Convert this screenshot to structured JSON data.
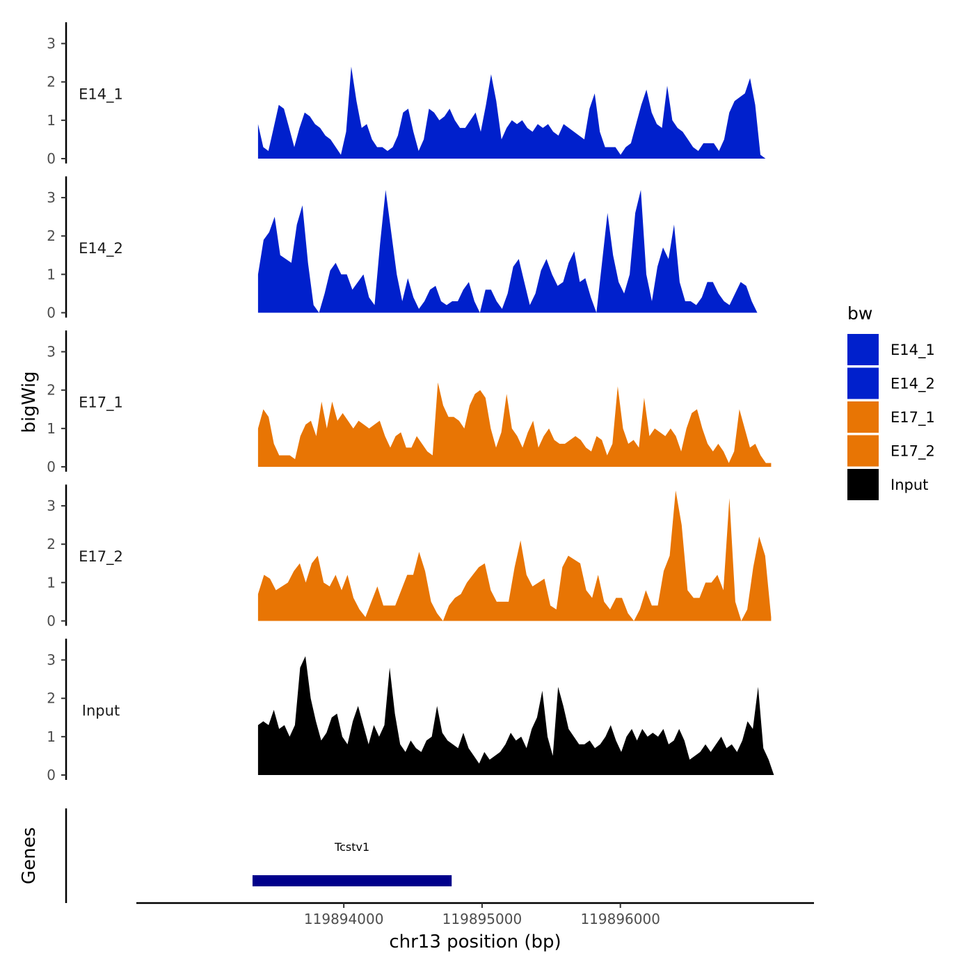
{
  "chart_data": {
    "type": "area",
    "ylabel": "bigWig",
    "xlabel": "chr13 position (bp)",
    "x_ticks": [
      119894000,
      119895000,
      119896000
    ],
    "x_tick_labels": [
      "119894000",
      "119895000",
      "119896000"
    ],
    "xlim": [
      119892500,
      119897400
    ],
    "ylim": [
      0,
      3.5
    ],
    "y_ticks": [
      0,
      1,
      2,
      3
    ],
    "y_tick_labels": [
      "0",
      "1",
      "2",
      "3"
    ],
    "gene_panel_label": "Genes",
    "legend": {
      "title": "bw",
      "entries": [
        {
          "label": "E14_1",
          "color": "#0020CC"
        },
        {
          "label": "E14_2",
          "color": "#0020CC"
        },
        {
          "label": "E17_1",
          "color": "#E87504"
        },
        {
          "label": "E17_2",
          "color": "#E87504"
        },
        {
          "label": "Input",
          "color": "#000000"
        }
      ]
    },
    "series": [
      {
        "name": "E14_1",
        "color": "#0020CC",
        "x_start": 119893380,
        "x_end": 119897050,
        "values": [
          0.9,
          0.3,
          0.2,
          0.8,
          1.4,
          1.3,
          0.8,
          0.3,
          0.8,
          1.2,
          1.1,
          0.9,
          0.8,
          0.6,
          0.5,
          0.3,
          0.1,
          0.7,
          2.4,
          1.5,
          0.8,
          0.9,
          0.5,
          0.3,
          0.3,
          0.2,
          0.3,
          0.6,
          1.2,
          1.3,
          0.7,
          0.2,
          0.5,
          1.3,
          1.2,
          1.0,
          1.1,
          1.3,
          1.0,
          0.8,
          0.8,
          1.0,
          1.2,
          0.7,
          1.4,
          2.2,
          1.5,
          0.5,
          0.8,
          1.0,
          0.9,
          1.0,
          0.8,
          0.7,
          0.9,
          0.8,
          0.9,
          0.7,
          0.6,
          0.9,
          0.8,
          0.7,
          0.6,
          0.5,
          1.3,
          1.7,
          0.7,
          0.3,
          0.3,
          0.3,
          0.1,
          0.3,
          0.4,
          0.9,
          1.4,
          1.8,
          1.2,
          0.9,
          0.8,
          1.9,
          1.0,
          0.8,
          0.7,
          0.5,
          0.3,
          0.2,
          0.4,
          0.4,
          0.4,
          0.2,
          0.5,
          1.2,
          1.5,
          1.6,
          1.7,
          2.1,
          1.4,
          0.1,
          0.0
        ]
      },
      {
        "name": "E14_2",
        "color": "#0020CC",
        "x_start": 119893380,
        "x_end": 119896990,
        "values": [
          1.0,
          1.9,
          2.1,
          2.5,
          1.5,
          1.4,
          1.3,
          2.3,
          2.8,
          1.3,
          0.2,
          0.0,
          0.5,
          1.1,
          1.3,
          1.0,
          1.0,
          0.6,
          0.8,
          1.0,
          0.4,
          0.2,
          1.8,
          3.2,
          2.1,
          1.0,
          0.3,
          0.9,
          0.4,
          0.1,
          0.3,
          0.6,
          0.7,
          0.3,
          0.2,
          0.3,
          0.3,
          0.6,
          0.8,
          0.3,
          0.0,
          0.6,
          0.6,
          0.3,
          0.1,
          0.5,
          1.2,
          1.4,
          0.8,
          0.2,
          0.5,
          1.1,
          1.4,
          1.0,
          0.7,
          0.8,
          1.3,
          1.6,
          0.8,
          0.9,
          0.4,
          0.0,
          1.3,
          2.6,
          1.5,
          0.8,
          0.5,
          1.0,
          2.6,
          3.2,
          1.0,
          0.3,
          1.2,
          1.7,
          1.4,
          2.3,
          0.8,
          0.3,
          0.3,
          0.2,
          0.4,
          0.8,
          0.8,
          0.5,
          0.3,
          0.2,
          0.5,
          0.8,
          0.7,
          0.3,
          0.0
        ]
      },
      {
        "name": "E17_1",
        "color": "#E87504",
        "x_start": 119893380,
        "x_end": 119897090,
        "values": [
          1.0,
          1.5,
          1.3,
          0.6,
          0.3,
          0.3,
          0.3,
          0.2,
          0.8,
          1.1,
          1.2,
          0.8,
          1.7,
          1.0,
          1.7,
          1.2,
          1.4,
          1.2,
          1.0,
          1.2,
          1.1,
          1.0,
          1.1,
          1.2,
          0.8,
          0.5,
          0.8,
          0.9,
          0.5,
          0.5,
          0.8,
          0.6,
          0.4,
          0.3,
          2.2,
          1.6,
          1.3,
          1.3,
          1.2,
          1.0,
          1.6,
          1.9,
          2.0,
          1.8,
          1.0,
          0.5,
          0.9,
          1.9,
          1.0,
          0.8,
          0.5,
          0.9,
          1.2,
          0.5,
          0.8,
          1.0,
          0.7,
          0.6,
          0.6,
          0.7,
          0.8,
          0.7,
          0.5,
          0.4,
          0.8,
          0.7,
          0.3,
          0.6,
          2.1,
          1.0,
          0.6,
          0.7,
          0.5,
          1.8,
          0.8,
          1.0,
          0.9,
          0.8,
          1.0,
          0.8,
          0.4,
          1.0,
          1.4,
          1.5,
          1.0,
          0.6,
          0.4,
          0.6,
          0.4,
          0.1,
          0.4,
          1.5,
          1.0,
          0.5,
          0.6,
          0.3,
          0.1,
          0.1
        ]
      },
      {
        "name": "E17_2",
        "color": "#E87504",
        "x_start": 119893380,
        "x_end": 119897090,
        "values": [
          0.7,
          1.2,
          1.1,
          0.8,
          0.9,
          1.0,
          1.3,
          1.5,
          1.0,
          1.5,
          1.7,
          1.0,
          0.9,
          1.2,
          0.8,
          1.2,
          0.6,
          0.3,
          0.1,
          0.5,
          0.9,
          0.4,
          0.4,
          0.4,
          0.8,
          1.2,
          1.2,
          1.8,
          1.3,
          0.5,
          0.2,
          0.0,
          0.4,
          0.6,
          0.7,
          1.0,
          1.2,
          1.4,
          1.5,
          0.8,
          0.5,
          0.5,
          0.5,
          1.4,
          2.1,
          1.2,
          0.9,
          1.0,
          1.1,
          0.4,
          0.3,
          1.4,
          1.7,
          1.6,
          1.5,
          0.8,
          0.6,
          1.2,
          0.5,
          0.3,
          0.6,
          0.6,
          0.2,
          0.0,
          0.3,
          0.8,
          0.4,
          0.4,
          1.3,
          1.7,
          3.4,
          2.5,
          0.8,
          0.6,
          0.6,
          1.0,
          1.0,
          1.2,
          0.8,
          3.2,
          0.5,
          0.0,
          0.3,
          1.4,
          2.2,
          1.7,
          0.1
        ]
      },
      {
        "name": "Input",
        "color": "#000000",
        "x_start": 119893380,
        "x_end": 119897110,
        "values": [
          1.3,
          1.4,
          1.3,
          1.7,
          1.2,
          1.3,
          1.0,
          1.3,
          2.8,
          3.1,
          2.0,
          1.4,
          0.9,
          1.1,
          1.5,
          1.6,
          1.0,
          0.8,
          1.4,
          1.8,
          1.3,
          0.8,
          1.3,
          1.0,
          1.3,
          2.8,
          1.6,
          0.8,
          0.6,
          0.9,
          0.7,
          0.6,
          0.9,
          1.0,
          1.8,
          1.1,
          0.9,
          0.8,
          0.7,
          1.1,
          0.7,
          0.5,
          0.3,
          0.6,
          0.4,
          0.5,
          0.6,
          0.8,
          1.1,
          0.9,
          1.0,
          0.7,
          1.2,
          1.5,
          2.2,
          1.0,
          0.5,
          2.3,
          1.8,
          1.2,
          1.0,
          0.8,
          0.8,
          0.9,
          0.7,
          0.8,
          1.0,
          1.3,
          0.9,
          0.6,
          1.0,
          1.2,
          0.9,
          1.2,
          1.0,
          1.1,
          1.0,
          1.2,
          0.8,
          0.9,
          1.2,
          0.9,
          0.4,
          0.5,
          0.6,
          0.8,
          0.6,
          0.8,
          1.0,
          0.7,
          0.8,
          0.6,
          0.9,
          1.4,
          1.2,
          2.3,
          0.7,
          0.4,
          0.0
        ]
      }
    ],
    "genes": [
      {
        "name": "Tcstv1",
        "start": 119893340,
        "end": 119894780,
        "color": "#00008B"
      }
    ]
  }
}
